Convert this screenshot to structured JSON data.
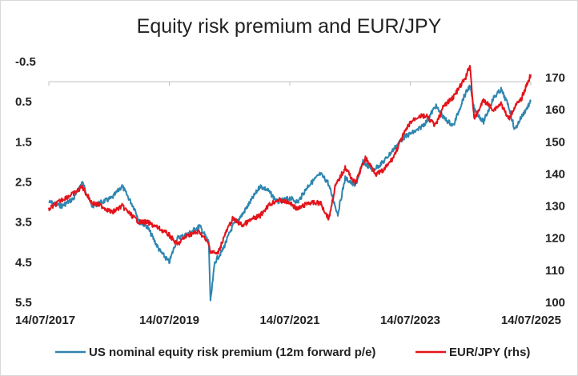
{
  "chart_data": {
    "type": "line",
    "title": "Equity risk premium and EUR/JPY",
    "x_ticks": [
      "14/07/2017",
      "14/07/2019",
      "14/07/2021",
      "14/07/2023",
      "14/07/2025"
    ],
    "y_left": {
      "ticks": [
        "-0.5",
        "0.5",
        "1.5",
        "2.5",
        "3.5",
        "4.5",
        "5.5"
      ],
      "ylim": [
        -0.5,
        5.5
      ],
      "inverted": true
    },
    "y_right": {
      "ticks": [
        "170",
        "160",
        "150",
        "140",
        "130",
        "120",
        "110",
        "100"
      ],
      "ylim": [
        100,
        175
      ]
    },
    "xlim": [
      "2017-07-14",
      "2025-07-14"
    ],
    "grid": false,
    "legend_placement": "bottom",
    "series": [
      {
        "name": "US nominal equity risk premium (12m forward p/e)",
        "axis": "left",
        "color": "#2e86b0",
        "points": [
          [
            "2017-07-14",
            3.0
          ],
          [
            "2017-10-01",
            3.1
          ],
          [
            "2017-12-15",
            2.9
          ],
          [
            "2018-02-01",
            2.5
          ],
          [
            "2018-04-01",
            3.1
          ],
          [
            "2018-06-01",
            3.0
          ],
          [
            "2018-08-01",
            2.9
          ],
          [
            "2018-10-01",
            2.6
          ],
          [
            "2018-12-20",
            3.2
          ],
          [
            "2019-01-15",
            3.5
          ],
          [
            "2019-03-01",
            3.6
          ],
          [
            "2019-05-15",
            4.2
          ],
          [
            "2019-07-14",
            4.5
          ],
          [
            "2019-09-01",
            3.9
          ],
          [
            "2019-11-01",
            3.8
          ],
          [
            "2020-01-15",
            3.6
          ],
          [
            "2020-03-10",
            4.0
          ],
          [
            "2020-03-20",
            5.5
          ],
          [
            "2020-04-15",
            4.5
          ],
          [
            "2020-06-01",
            4.2
          ],
          [
            "2020-08-01",
            3.6
          ],
          [
            "2020-10-01",
            3.3
          ],
          [
            "2020-12-01",
            2.9
          ],
          [
            "2021-01-15",
            2.6
          ],
          [
            "2021-03-01",
            2.7
          ],
          [
            "2021-05-01",
            3.0
          ],
          [
            "2021-07-14",
            2.9
          ],
          [
            "2021-09-01",
            3.0
          ],
          [
            "2021-11-01",
            2.6
          ],
          [
            "2022-01-15",
            2.3
          ],
          [
            "2022-03-01",
            2.5
          ],
          [
            "2022-05-01",
            3.3
          ],
          [
            "2022-06-15",
            2.4
          ],
          [
            "2022-08-15",
            2.6
          ],
          [
            "2022-10-01",
            2.0
          ],
          [
            "2022-12-01",
            2.2
          ],
          [
            "2023-02-01",
            2.0
          ],
          [
            "2023-04-01",
            1.7
          ],
          [
            "2023-06-01",
            1.4
          ],
          [
            "2023-07-14",
            1.3
          ],
          [
            "2023-09-01",
            1.2
          ],
          [
            "2023-10-20",
            1.0
          ],
          [
            "2023-12-15",
            0.6
          ],
          [
            "2024-02-01",
            0.9
          ],
          [
            "2024-04-01",
            1.1
          ],
          [
            "2024-06-01",
            0.4
          ],
          [
            "2024-07-10",
            0.1
          ],
          [
            "2024-08-05",
            0.7
          ],
          [
            "2024-10-01",
            1.0
          ],
          [
            "2024-12-01",
            0.4
          ],
          [
            "2025-01-15",
            0.2
          ],
          [
            "2025-03-01",
            0.6
          ],
          [
            "2025-04-08",
            1.2
          ],
          [
            "2025-05-15",
            0.9
          ],
          [
            "2025-07-14",
            0.5
          ]
        ]
      },
      {
        "name": "EUR/JPY (rhs)",
        "axis": "right",
        "color": "#e3141b",
        "points": [
          [
            "2017-07-14",
            129
          ],
          [
            "2017-10-01",
            132
          ],
          [
            "2017-12-15",
            134
          ],
          [
            "2018-02-01",
            136
          ],
          [
            "2018-04-01",
            131
          ],
          [
            "2018-06-01",
            130
          ],
          [
            "2018-08-01",
            128
          ],
          [
            "2018-10-01",
            130
          ],
          [
            "2018-12-20",
            126
          ],
          [
            "2019-01-15",
            125
          ],
          [
            "2019-03-01",
            125
          ],
          [
            "2019-05-15",
            123
          ],
          [
            "2019-07-14",
            121
          ],
          [
            "2019-09-01",
            118
          ],
          [
            "2019-11-01",
            121
          ],
          [
            "2020-01-15",
            122
          ],
          [
            "2020-03-10",
            118
          ],
          [
            "2020-03-20",
            116
          ],
          [
            "2020-05-01",
            115
          ],
          [
            "2020-06-15",
            121
          ],
          [
            "2020-08-01",
            126
          ],
          [
            "2020-10-01",
            124
          ],
          [
            "2020-12-01",
            126
          ],
          [
            "2021-01-15",
            127
          ],
          [
            "2021-03-01",
            130
          ],
          [
            "2021-05-01",
            132
          ],
          [
            "2021-07-14",
            131
          ],
          [
            "2021-09-01",
            129
          ],
          [
            "2021-11-01",
            131
          ],
          [
            "2022-01-15",
            131
          ],
          [
            "2022-03-08",
            126
          ],
          [
            "2022-04-15",
            136
          ],
          [
            "2022-06-15",
            142
          ],
          [
            "2022-08-15",
            137
          ],
          [
            "2022-10-15",
            145
          ],
          [
            "2022-12-20",
            140
          ],
          [
            "2023-02-01",
            141
          ],
          [
            "2023-04-01",
            145
          ],
          [
            "2023-06-01",
            152
          ],
          [
            "2023-07-14",
            156
          ],
          [
            "2023-09-01",
            158
          ],
          [
            "2023-10-20",
            158
          ],
          [
            "2023-12-15",
            155
          ],
          [
            "2024-02-01",
            161
          ],
          [
            "2024-04-01",
            164
          ],
          [
            "2024-06-15",
            170
          ],
          [
            "2024-07-10",
            174
          ],
          [
            "2024-08-05",
            157
          ],
          [
            "2024-10-01",
            163
          ],
          [
            "2024-12-01",
            160
          ],
          [
            "2025-01-15",
            162
          ],
          [
            "2025-03-01",
            157
          ],
          [
            "2025-04-08",
            161
          ],
          [
            "2025-05-15",
            163
          ],
          [
            "2025-07-14",
            171
          ]
        ]
      }
    ]
  }
}
